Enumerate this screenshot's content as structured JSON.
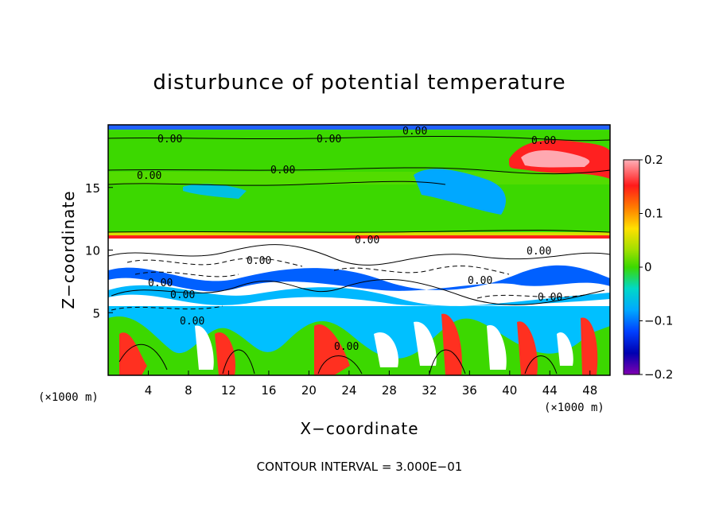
{
  "chart_data": {
    "type": "heatmap",
    "title": "disturbunce of potential temperature",
    "xlabel": "X−coordinate",
    "ylabel": "Z−coordinate",
    "x_unit": "(×1000 m)",
    "z_unit": "(×1000 m)",
    "xlim": [
      0,
      50
    ],
    "ylim": [
      0,
      20
    ],
    "x_ticks": [
      4,
      8,
      12,
      16,
      20,
      24,
      28,
      32,
      36,
      40,
      44,
      48
    ],
    "y_ticks": [
      5,
      10,
      15
    ],
    "colorbar": {
      "range": [
        -0.2,
        0.2
      ],
      "ticks": [
        "0.2",
        "0.1",
        "0",
        "−0.1",
        "−0.2"
      ],
      "colors": [
        "#ffa8b0",
        "#ff2020",
        "#ff7a00",
        "#ffe000",
        "#a0e000",
        "#3cd800",
        "#00d8c8",
        "#00a8ff",
        "#0040ff",
        "#0000c0",
        "#8000b0"
      ]
    },
    "footer": "CONTOUR INTERVAL = 3.000E−01",
    "contour_labels": [
      "0.00",
      "0.00",
      "0.00",
      "0.00",
      "0.00",
      "0.00",
      "0.00",
      "0.00",
      "0.00",
      "0.00",
      "0.00",
      "0.00",
      "0.00",
      "0.00",
      "0.00"
    ]
  }
}
